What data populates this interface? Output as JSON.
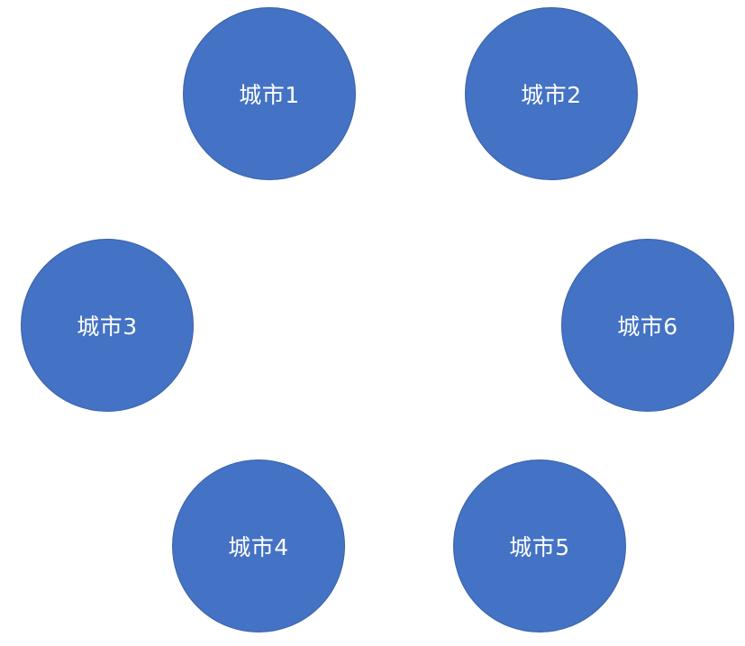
{
  "colors": {
    "node_fill": "#4472c4",
    "label_text": "#ffffff",
    "background": "#ffffff"
  },
  "nodes": [
    {
      "id": "city-1",
      "label": "城市1"
    },
    {
      "id": "city-2",
      "label": "城市2"
    },
    {
      "id": "city-3",
      "label": "城市3"
    },
    {
      "id": "city-4",
      "label": "城市4"
    },
    {
      "id": "city-5",
      "label": "城市5"
    },
    {
      "id": "city-6",
      "label": "城市6"
    }
  ]
}
